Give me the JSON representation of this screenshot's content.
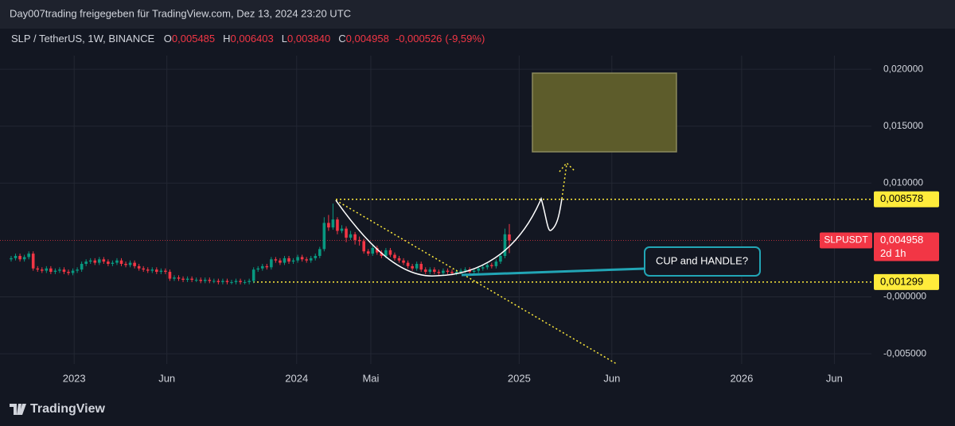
{
  "header": {
    "author_line": "Day007trading freigegeben für TradingView.com, Dez 13, 2024 23:20 UTC"
  },
  "chart_data": {
    "type": "candlestick",
    "symbol": "SLP / TetherUS, 1W, BINANCE",
    "ohlc_legend": [
      {
        "prefix": "O",
        "value": 0.005485,
        "label": "0,005485"
      },
      {
        "prefix": "H",
        "value": 0.006403,
        "label": "0,006403"
      },
      {
        "prefix": "L",
        "value": 0.00384,
        "label": "0,003840"
      },
      {
        "prefix": "C",
        "value": 0.004958,
        "label": "0,004958"
      }
    ],
    "change": {
      "value": -0.000526,
      "label": "-0,000526"
    },
    "change_percent": {
      "value": -9.59,
      "label": "(-9,59%)"
    },
    "candles": [
      [
        0.0033,
        0.0036,
        0.0031,
        0.0034
      ],
      [
        0.0034,
        0.0038,
        0.0032,
        0.0036
      ],
      [
        0.0036,
        0.0038,
        0.0031,
        0.0033
      ],
      [
        0.0033,
        0.0037,
        0.0031,
        0.0035
      ],
      [
        0.0035,
        0.004,
        0.0033,
        0.0038
      ],
      [
        0.0038,
        0.004,
        0.0023,
        0.0025
      ],
      [
        0.0025,
        0.0027,
        0.0022,
        0.0024
      ],
      [
        0.0024,
        0.0026,
        0.0021,
        0.0023
      ],
      [
        0.0023,
        0.0027,
        0.0021,
        0.0025
      ],
      [
        0.0025,
        0.0027,
        0.002,
        0.0022
      ],
      [
        0.0022,
        0.0025,
        0.002,
        0.0023
      ],
      [
        0.0023,
        0.0026,
        0.0021,
        0.0024
      ],
      [
        0.0024,
        0.0026,
        0.002,
        0.0022
      ],
      [
        0.0022,
        0.0024,
        0.0019,
        0.0021
      ],
      [
        0.0021,
        0.0025,
        0.0019,
        0.0023
      ],
      [
        0.0023,
        0.0026,
        0.0021,
        0.0024
      ],
      [
        0.0024,
        0.0031,
        0.0022,
        0.0029
      ],
      [
        0.0029,
        0.0033,
        0.0027,
        0.0031
      ],
      [
        0.0031,
        0.0034,
        0.0029,
        0.0032
      ],
      [
        0.0032,
        0.0034,
        0.0028,
        0.003
      ],
      [
        0.003,
        0.0035,
        0.0028,
        0.0033
      ],
      [
        0.0033,
        0.0035,
        0.0029,
        0.0031
      ],
      [
        0.0031,
        0.0033,
        0.0027,
        0.0029
      ],
      [
        0.0029,
        0.0032,
        0.0027,
        0.003
      ],
      [
        0.003,
        0.0034,
        0.0028,
        0.0032
      ],
      [
        0.0032,
        0.0034,
        0.0027,
        0.0029
      ],
      [
        0.0029,
        0.0031,
        0.0026,
        0.0028
      ],
      [
        0.0028,
        0.0032,
        0.0026,
        0.003
      ],
      [
        0.003,
        0.0032,
        0.0025,
        0.0027
      ],
      [
        0.0027,
        0.0029,
        0.0023,
        0.0025
      ],
      [
        0.0025,
        0.0027,
        0.0022,
        0.0024
      ],
      [
        0.0024,
        0.0026,
        0.0021,
        0.0023
      ],
      [
        0.0023,
        0.0026,
        0.0021,
        0.0024
      ],
      [
        0.0024,
        0.0026,
        0.002,
        0.0022
      ],
      [
        0.0022,
        0.0025,
        0.002,
        0.0023
      ],
      [
        0.0023,
        0.0025,
        0.002,
        0.0022
      ],
      [
        0.0022,
        0.0024,
        0.0014,
        0.0016
      ],
      [
        0.0016,
        0.0019,
        0.0014,
        0.0017
      ],
      [
        0.0017,
        0.0019,
        0.0014,
        0.0016
      ],
      [
        0.0016,
        0.0018,
        0.0013,
        0.0015
      ],
      [
        0.0015,
        0.0018,
        0.0013,
        0.0016
      ],
      [
        0.0016,
        0.0018,
        0.0013,
        0.0015
      ],
      [
        0.0015,
        0.0017,
        0.0013,
        0.0015
      ],
      [
        0.0015,
        0.0017,
        0.0012,
        0.0014
      ],
      [
        0.0014,
        0.0017,
        0.0012,
        0.0015
      ],
      [
        0.0015,
        0.0017,
        0.0012,
        0.0014
      ],
      [
        0.0014,
        0.0016,
        0.0012,
        0.0014
      ],
      [
        0.0014,
        0.0016,
        0.0011,
        0.0013
      ],
      [
        0.0013,
        0.0016,
        0.0011,
        0.0014
      ],
      [
        0.0014,
        0.0016,
        0.0011,
        0.0013
      ],
      [
        0.0013,
        0.0015,
        0.0011,
        0.0013
      ],
      [
        0.0013,
        0.0016,
        0.0011,
        0.0014
      ],
      [
        0.0014,
        0.0016,
        0.0011,
        0.0013
      ],
      [
        0.0013,
        0.0015,
        0.0011,
        0.0013
      ],
      [
        0.0013,
        0.0016,
        0.0011,
        0.0014
      ],
      [
        0.0014,
        0.0026,
        0.0012,
        0.0024
      ],
      [
        0.0024,
        0.0027,
        0.0022,
        0.0025
      ],
      [
        0.0025,
        0.0029,
        0.0023,
        0.0027
      ],
      [
        0.0027,
        0.0029,
        0.0024,
        0.0026
      ],
      [
        0.0026,
        0.0035,
        0.0024,
        0.0033
      ],
      [
        0.0033,
        0.0035,
        0.003,
        0.0032
      ],
      [
        0.0032,
        0.0034,
        0.0028,
        0.003
      ],
      [
        0.003,
        0.0036,
        0.0028,
        0.0034
      ],
      [
        0.0034,
        0.0036,
        0.0029,
        0.0031
      ],
      [
        0.0031,
        0.0034,
        0.0029,
        0.0032
      ],
      [
        0.0032,
        0.0037,
        0.003,
        0.0035
      ],
      [
        0.0035,
        0.0037,
        0.0031,
        0.0033
      ],
      [
        0.0033,
        0.0035,
        0.003,
        0.0032
      ],
      [
        0.0032,
        0.0036,
        0.003,
        0.0034
      ],
      [
        0.0034,
        0.0038,
        0.0032,
        0.0036
      ],
      [
        0.0036,
        0.0044,
        0.0034,
        0.0042
      ],
      [
        0.0042,
        0.007,
        0.004,
        0.0065
      ],
      [
        0.0065,
        0.0072,
        0.0058,
        0.0061
      ],
      [
        0.0061,
        0.0082,
        0.0059,
        0.0068
      ],
      [
        0.0068,
        0.007,
        0.0055,
        0.0058
      ],
      [
        0.0058,
        0.0063,
        0.0056,
        0.006
      ],
      [
        0.006,
        0.0062,
        0.0048,
        0.0052
      ],
      [
        0.0052,
        0.0058,
        0.005,
        0.0055
      ],
      [
        0.0055,
        0.0057,
        0.0046,
        0.005
      ],
      [
        0.005,
        0.0053,
        0.0045,
        0.0049
      ],
      [
        0.0049,
        0.0051,
        0.0038,
        0.004
      ],
      [
        0.004,
        0.0042,
        0.0036,
        0.0038
      ],
      [
        0.0038,
        0.0046,
        0.0036,
        0.0043
      ],
      [
        0.0043,
        0.0045,
        0.0037,
        0.0039
      ],
      [
        0.0039,
        0.0041,
        0.0034,
        0.0036
      ],
      [
        0.0036,
        0.0043,
        0.0034,
        0.0041
      ],
      [
        0.0041,
        0.0043,
        0.0035,
        0.0037
      ],
      [
        0.0037,
        0.0039,
        0.0032,
        0.0034
      ],
      [
        0.0034,
        0.0036,
        0.003,
        0.0032
      ],
      [
        0.0032,
        0.0034,
        0.0028,
        0.003
      ],
      [
        0.003,
        0.0032,
        0.0025,
        0.0027
      ],
      [
        0.0027,
        0.0029,
        0.0023,
        0.0025
      ],
      [
        0.0025,
        0.0031,
        0.0023,
        0.0029
      ],
      [
        0.0029,
        0.0031,
        0.0022,
        0.0024
      ],
      [
        0.0024,
        0.0026,
        0.002,
        0.0022
      ],
      [
        0.0022,
        0.0026,
        0.002,
        0.0024
      ],
      [
        0.0024,
        0.0026,
        0.002,
        0.0022
      ],
      [
        0.0022,
        0.0024,
        0.0019,
        0.0021
      ],
      [
        0.0021,
        0.0025,
        0.0019,
        0.0023
      ],
      [
        0.0023,
        0.0025,
        0.002,
        0.0022
      ],
      [
        0.0022,
        0.0024,
        0.0019,
        0.0021
      ],
      [
        0.0021,
        0.0024,
        0.0019,
        0.0022
      ],
      [
        0.0022,
        0.0025,
        0.002,
        0.0023
      ],
      [
        0.0023,
        0.0026,
        0.0021,
        0.0024
      ],
      [
        0.0024,
        0.0026,
        0.002,
        0.0022
      ],
      [
        0.0022,
        0.0025,
        0.002,
        0.0023
      ],
      [
        0.0023,
        0.0027,
        0.0021,
        0.0025
      ],
      [
        0.0025,
        0.0028,
        0.0023,
        0.0026
      ],
      [
        0.0026,
        0.003,
        0.0024,
        0.0028
      ],
      [
        0.0028,
        0.003,
        0.0025,
        0.0027
      ],
      [
        0.0027,
        0.0033,
        0.0025,
        0.0031
      ],
      [
        0.0031,
        0.0038,
        0.0029,
        0.0036
      ],
      [
        0.0036,
        0.006,
        0.0034,
        0.0055
      ],
      [
        0.005485,
        0.006403,
        0.00384,
        0.004958
      ]
    ],
    "up_color": "#089981",
    "down_color": "#f23645",
    "ylim": [
      -0.0059,
      0.0212
    ],
    "yticks": [
      {
        "value": 0.02,
        "label": "0,020000"
      },
      {
        "value": 0.015,
        "label": "0,015000"
      },
      {
        "value": 0.01,
        "label": "0,010000"
      },
      {
        "value": 0,
        "label": "-0,000000"
      },
      {
        "value": -0.005,
        "label": "-0,005000"
      }
    ],
    "xlim": [
      "2022-09",
      "2026-08"
    ],
    "xticks": [
      {
        "value": "2023-01",
        "label": "2023"
      },
      {
        "value": "2023-06",
        "label": "Jun"
      },
      {
        "value": "2024-01",
        "label": "2024"
      },
      {
        "value": "2024-05",
        "label": "Mai"
      },
      {
        "value": "2025-01",
        "label": "2025"
      },
      {
        "value": "2025-06",
        "label": "Jun"
      },
      {
        "value": "2026-01",
        "label": "2026"
      },
      {
        "value": "2026-06",
        "label": "Jun"
      }
    ],
    "grid": true,
    "price_levels": [
      {
        "value": 0.008578,
        "label": "0,008578",
        "color": "#ffeb3b"
      },
      {
        "value": 0.001299,
        "label": "0,001299",
        "color": "#ffeb3b"
      }
    ],
    "last_price": {
      "name": "SLPUSDT",
      "value": 0.004958,
      "label": "0,004958",
      "countdown": "2d 1h",
      "color": "#f23645"
    },
    "annotation": "CUP and HANDLE?"
  },
  "footer": {
    "brand": "TradingView"
  }
}
